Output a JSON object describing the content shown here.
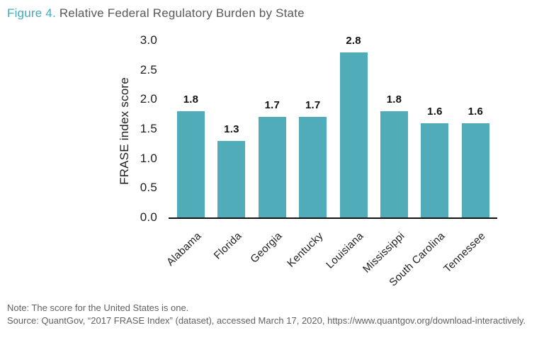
{
  "figure": {
    "label": "Figure 4.",
    "title_rest": " Relative Federal Regulatory Burden by State"
  },
  "chart_data": {
    "type": "bar",
    "title": "Figure 4. Relative Federal Regulatory Burden by State",
    "categories": [
      "Alabama",
      "Florida",
      "Georgia",
      "Kentucky",
      "Louisiana",
      "Mississippi",
      "South Carolina",
      "Tennessee"
    ],
    "values": [
      1.8,
      1.3,
      1.7,
      1.7,
      2.8,
      1.8,
      1.6,
      1.6
    ],
    "bar_labels": [
      "1.8",
      "1.3",
      "1.7",
      "1.7",
      "2.8",
      "1.8",
      "1.6",
      "1.6"
    ],
    "xlabel": "",
    "ylabel": "FRASE index score",
    "ylim": [
      0.0,
      3.0
    ],
    "ytick_labels": [
      "0.0",
      "0.5",
      "1.0",
      "1.5",
      "2.0",
      "2.5",
      "3.0"
    ],
    "bar_color": "#50acb9",
    "grid": false,
    "legend": "none"
  },
  "footnotes": {
    "note": "Note: The score for the United States is one.",
    "source": "Source: QuantGov, “2017 FRASE Index” (dataset), accessed March 17, 2020, https://www.quantgov.org/download-interactively."
  }
}
